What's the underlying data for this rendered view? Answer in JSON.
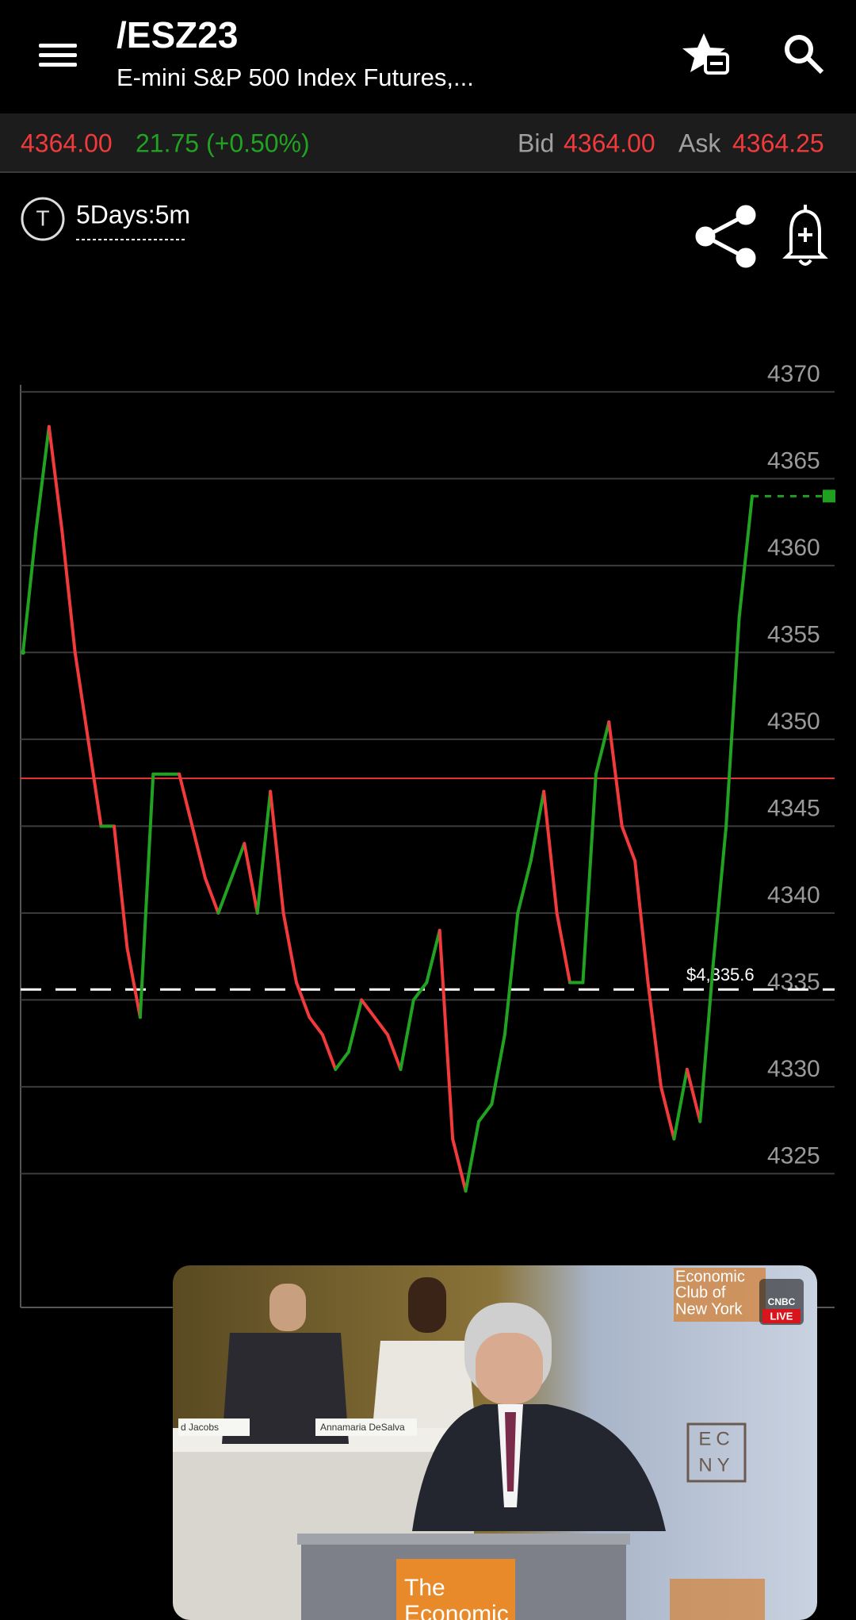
{
  "header": {
    "symbol": "/ESZ23",
    "description": "E-mini S&P 500 Index Futures,..."
  },
  "quote": {
    "last": "4364.00",
    "change": "21.75 (+0.50%)",
    "bid_label": "Bid",
    "bid": "4364.00",
    "ask_label": "Ask",
    "ask": "4364.25"
  },
  "toolbar": {
    "badge": "T",
    "period": "5Days:5m"
  },
  "chart_data": {
    "type": "line",
    "colors": {
      "up": "#21a321",
      "down": "#f03a3c"
    },
    "values": [
      4355,
      4362,
      4368,
      4362,
      4355,
      4350,
      4345,
      4345,
      4338,
      4334,
      4348,
      4348,
      4348,
      4345,
      4342,
      4340,
      4342,
      4344,
      4340,
      4347,
      4340,
      4336,
      4334,
      4333,
      4331,
      4332,
      4335,
      4334,
      4333,
      4331,
      4335,
      4336,
      4339,
      4327,
      4324,
      4328,
      4329,
      4333,
      4340,
      4343,
      4347,
      4340,
      4336,
      4336,
      4348,
      4351,
      4345,
      4343,
      4336,
      4330,
      4327,
      4331,
      4328,
      4337,
      4345,
      4357,
      4364
    ],
    "ylim": [
      4317.3,
      4374.7
    ],
    "yticks": [
      4325,
      4330,
      4335,
      4340,
      4345,
      4350,
      4355,
      4360,
      4365,
      4370
    ],
    "grid": true,
    "reference_lines": [
      {
        "value": 4347.75,
        "color": "#e8383b",
        "style": "solid"
      },
      {
        "value": 4335.6,
        "label": "$4,335.6",
        "color": "#ffffff",
        "style": "dashed"
      },
      {
        "value": 4364,
        "color": "#1fa01f",
        "style": "dotted"
      }
    ]
  },
  "video": {
    "sign_line1": "Economic",
    "sign_line2": "Club of",
    "sign_line3": "New York",
    "network": "CNBC",
    "live": "LIVE",
    "nameplate_left": "d Jacobs",
    "nameplate_right": "Annamaria DeSalva",
    "logo_top": "EC",
    "logo_bottom": "NY",
    "podium_line1": "The",
    "podium_line2": "Economic"
  }
}
